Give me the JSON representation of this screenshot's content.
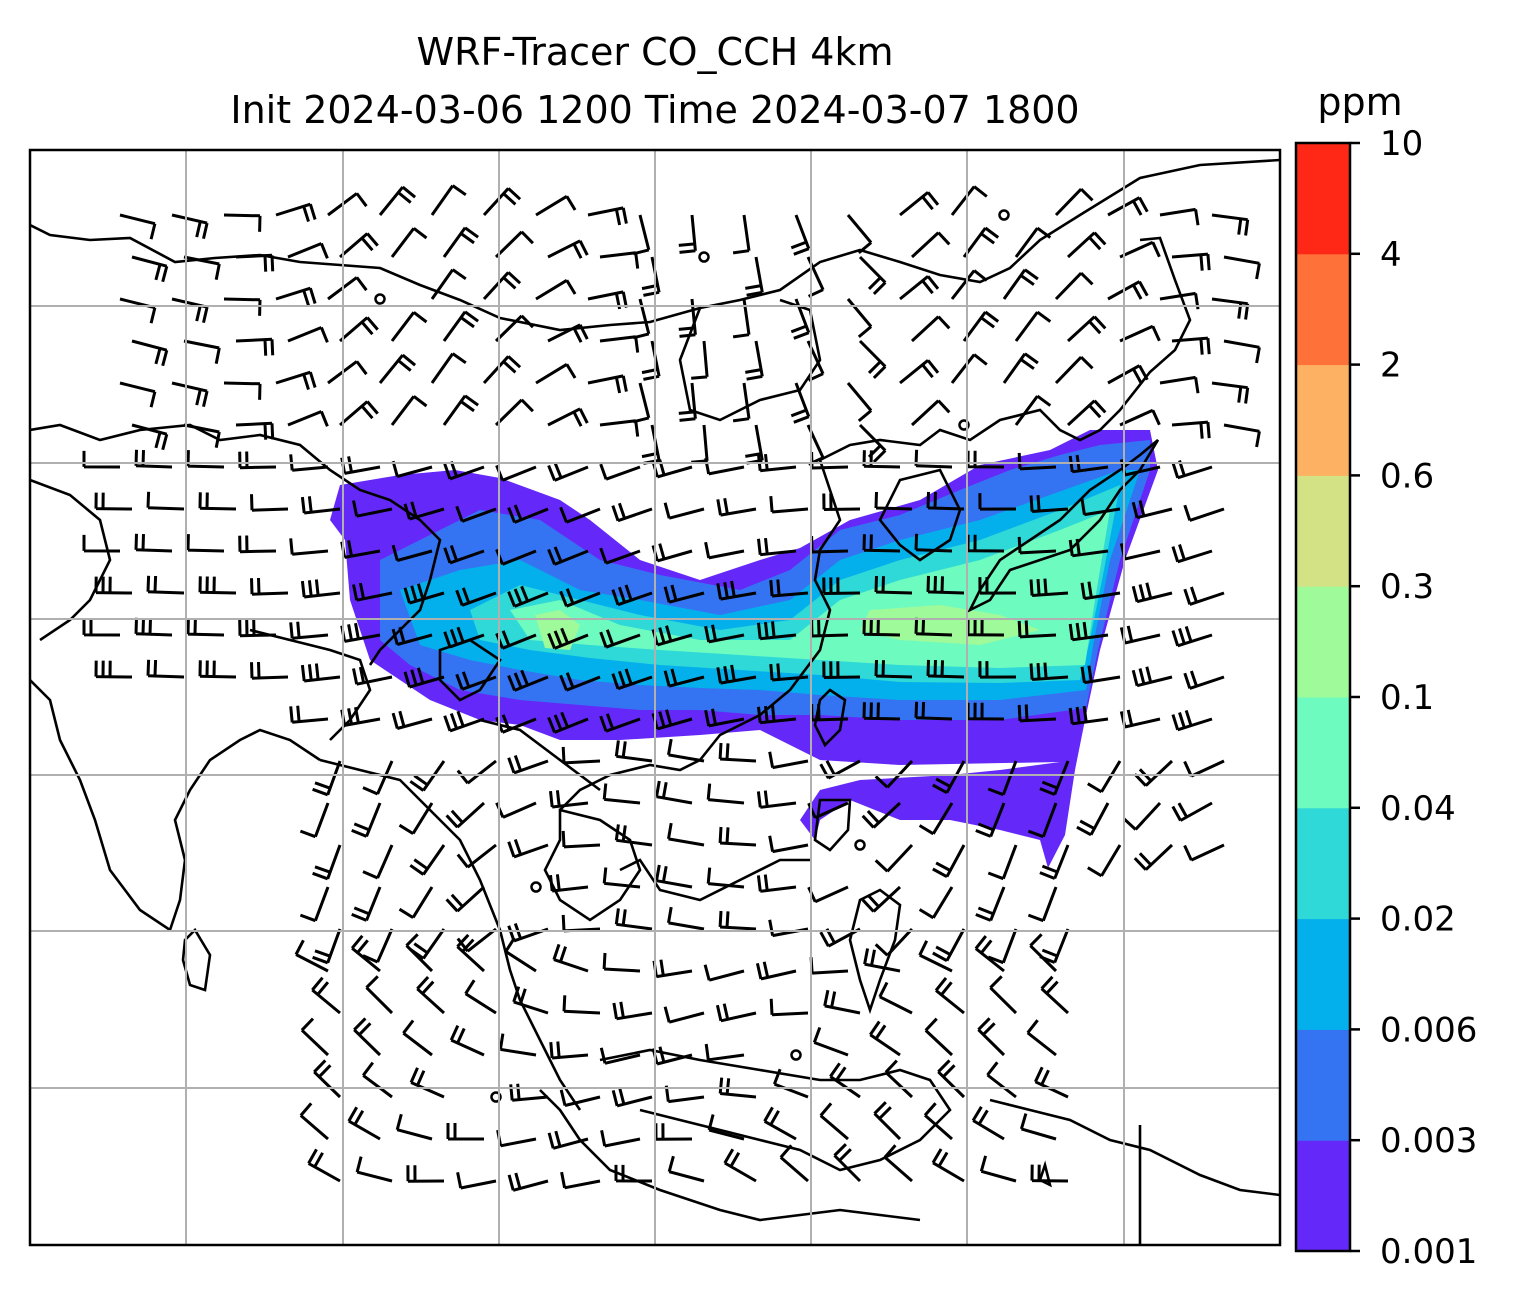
{
  "chart_data": {
    "type": "heatmap",
    "title": "WRF-Tracer CO_CCH 4km",
    "subtitle": "Init 2024-03-06 1200 Time 2024-03-07 1800",
    "colorbar": {
      "label": "ppm",
      "ticks": [
        "0.001",
        "0.003",
        "0.006",
        "0.02",
        "0.04",
        "0.1",
        "0.3",
        "0.6",
        "2",
        "4",
        "10"
      ],
      "colors": [
        "#6429f9",
        "#3474f2",
        "#04b0ec",
        "#2ed9d7",
        "#6efbc0",
        "#9ffa99",
        "#d4e286",
        "#fdb263",
        "#fe7239",
        "#ff2817"
      ]
    },
    "grid": true,
    "overlay": "wind barbs",
    "map": "coastlines and country borders, South and East Asia",
    "plume": {
      "description": "CO tracer plume extending from northern Indochina / southern China eastward over Taiwan toward Japan and the western Pacific",
      "peak_level": "0.1-0.3"
    }
  }
}
